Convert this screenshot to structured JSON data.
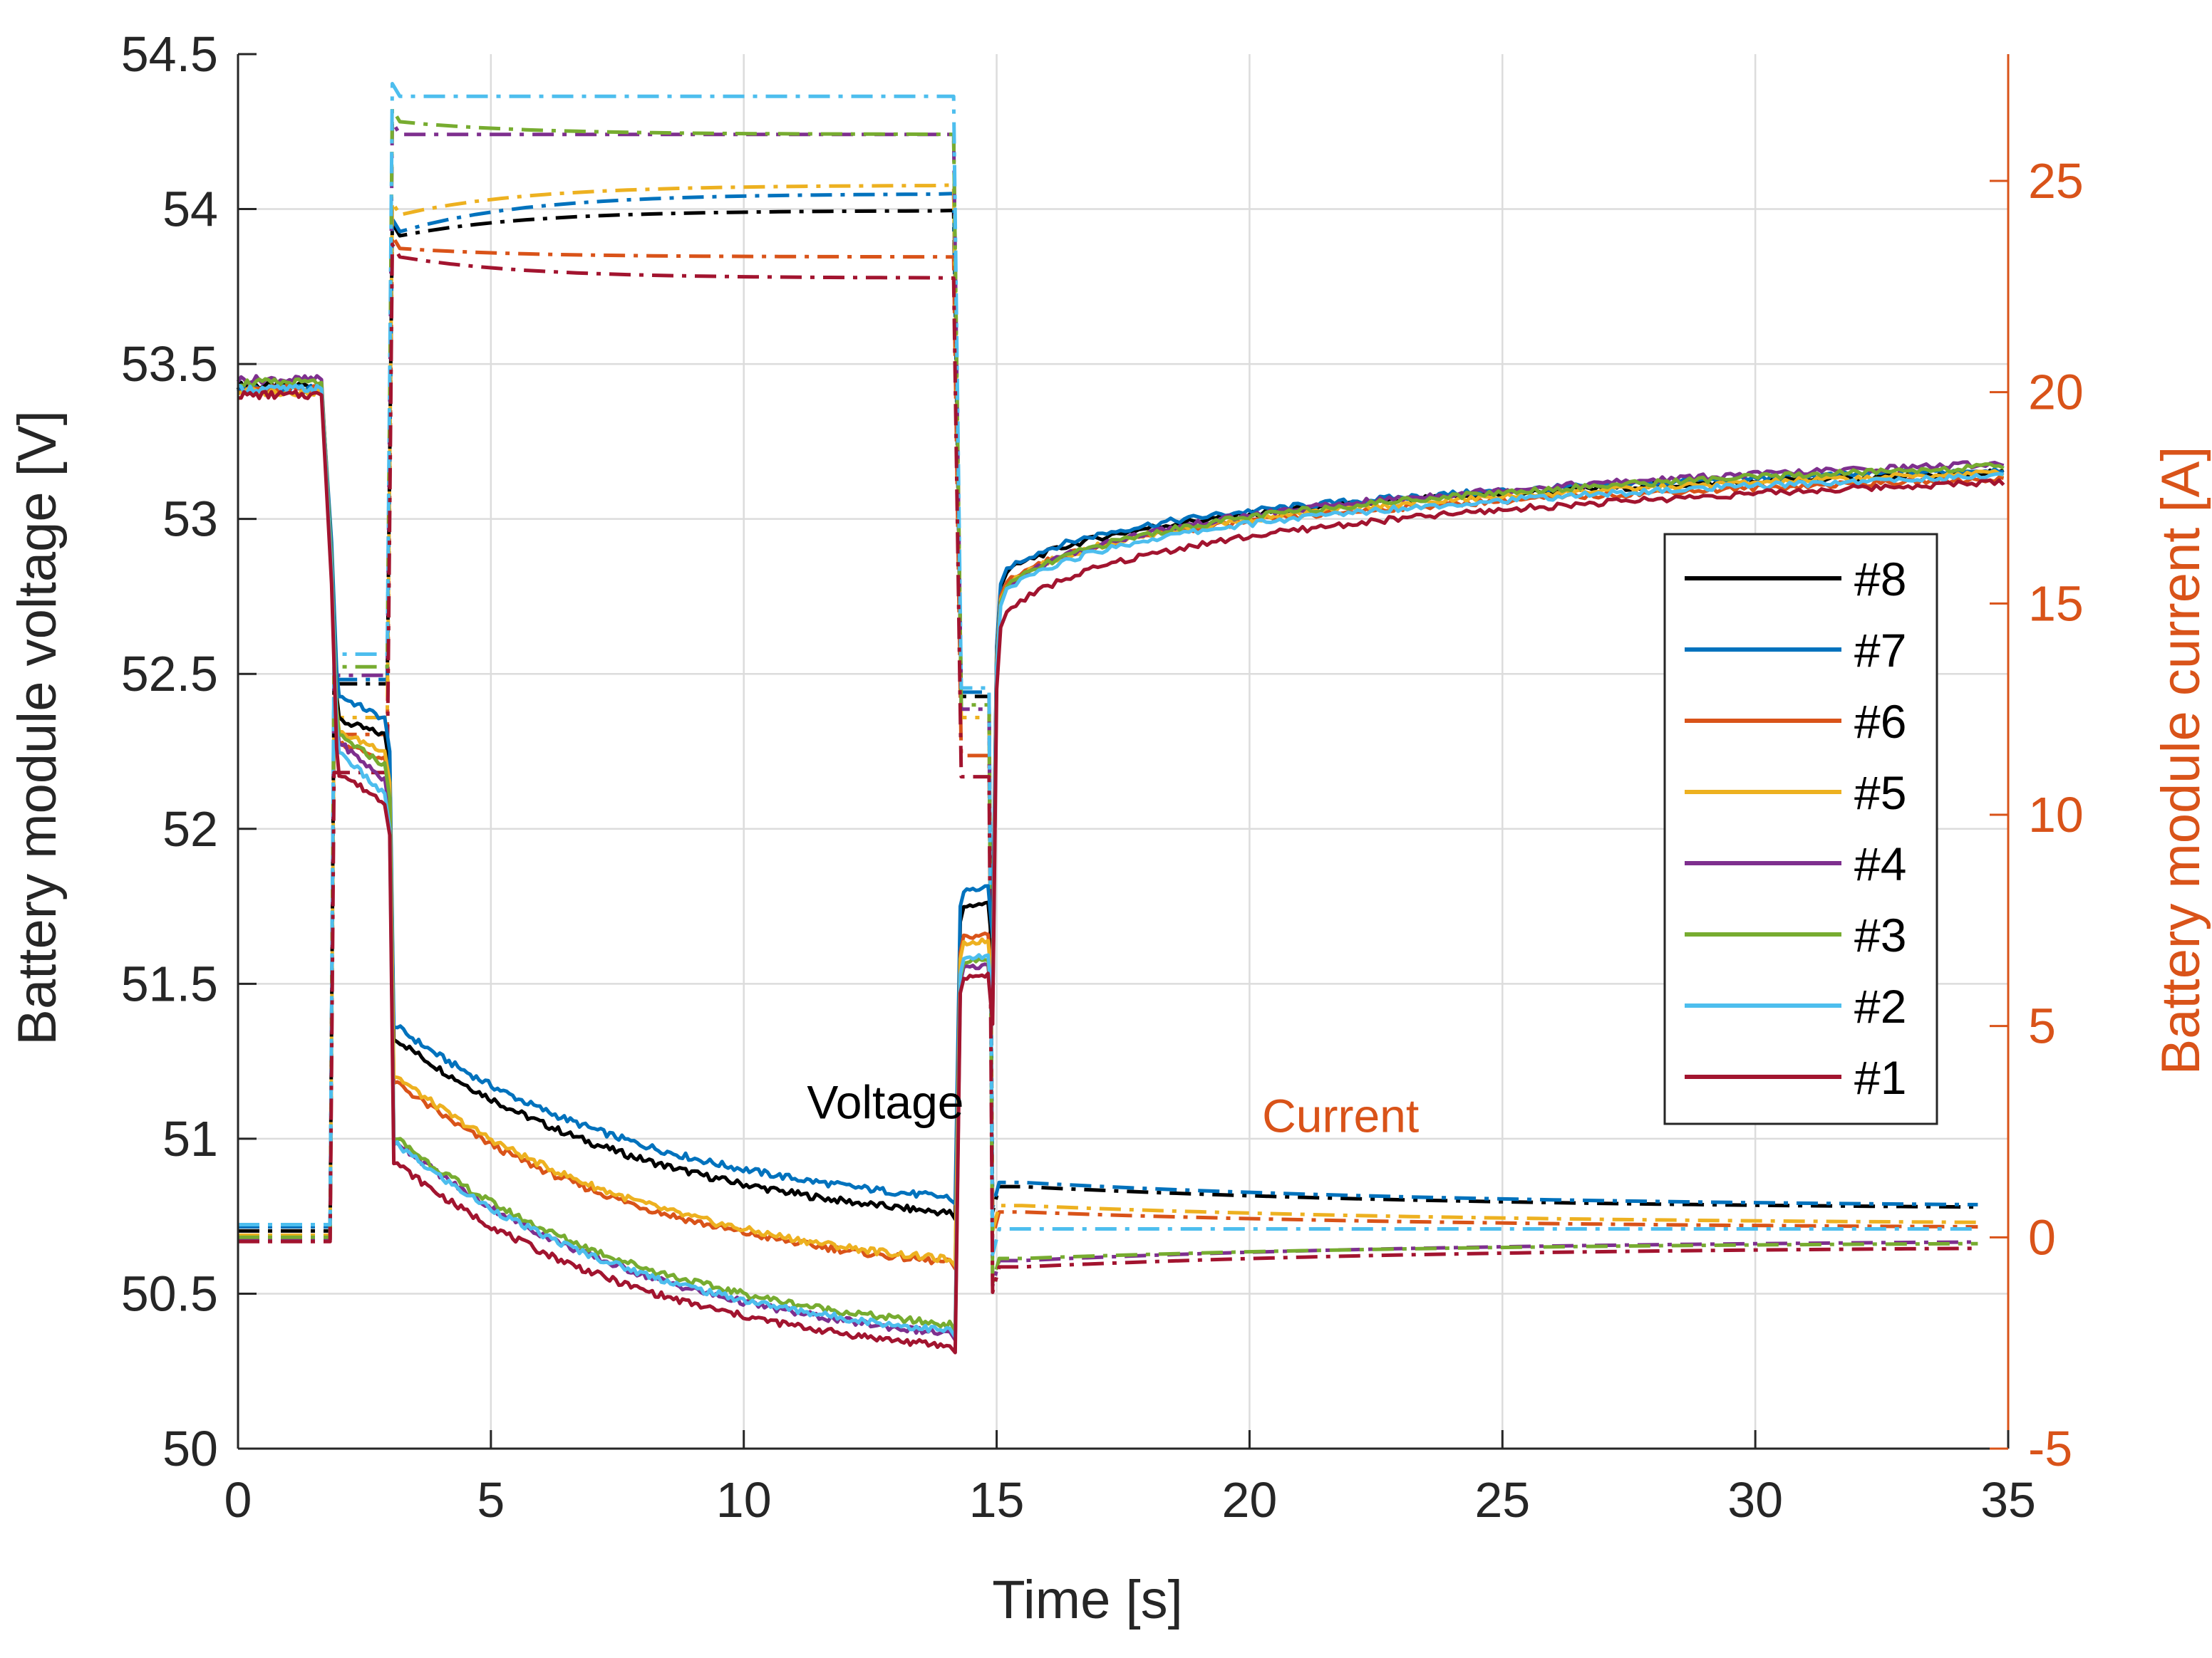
{
  "chart_data": {
    "type": "line",
    "title": "",
    "xlabel": "Time [s]",
    "ylabel_left": "Battery module voltage [V]",
    "ylabel_right": "Battery module current [A]",
    "xlim": [
      0,
      35
    ],
    "ylim_left": [
      50,
      54.5
    ],
    "ylim_right": [
      -5,
      28
    ],
    "x_ticks": [
      0,
      5,
      10,
      15,
      20,
      25,
      30,
      35
    ],
    "x_tick_labels": [
      "0",
      "5",
      "10",
      "15",
      "20",
      "25",
      "30",
      "35"
    ],
    "y_left_ticks": [
      50,
      50.5,
      51,
      51.5,
      52,
      52.5,
      53,
      53.5,
      54,
      54.5
    ],
    "y_left_tick_labels": [
      "50",
      "50.5",
      "51",
      "51.5",
      "52",
      "52.5",
      "53",
      "53.5",
      "54",
      "54.5"
    ],
    "y_right_ticks": [
      -5,
      0,
      5,
      10,
      15,
      20,
      25
    ],
    "y_right_tick_labels": [
      "-5",
      "0",
      "5",
      "10",
      "15",
      "20",
      "25"
    ],
    "grid": true,
    "legend_position": "right",
    "annotations": [
      {
        "text": "Voltage",
        "x": 12.8,
        "y": 51.12,
        "axis": "left",
        "color": "#000000"
      },
      {
        "text": "Current",
        "x": 21.8,
        "y": 2.9,
        "axis": "right",
        "color": "#D95319"
      }
    ],
    "colors": {
      "axis": "#262626",
      "grid": "#dcdcdc",
      "current_axis": "#D95319"
    },
    "series": [
      {
        "name": "#8",
        "color": "#000000",
        "v0": 53.43,
        "vd": 52.35,
        "vd2": 52.3,
        "vc0": 51.32,
        "vc1": 50.76,
        "vp": 51.75,
        "vr0": 52.83,
        "vr1": 53.15,
        "i0": 0.15,
        "id": 13.1,
        "ic0": 23.7,
        "ic1": 24.3,
        "ip": 12.8,
        "ir0": 1.2,
        "ir1": 0.65
      },
      {
        "name": "#7",
        "color": "#0072BD",
        "v0": 53.42,
        "vd": 52.43,
        "vd2": 52.35,
        "vc0": 51.36,
        "vc1": 50.81,
        "vp": 51.8,
        "vr0": 52.84,
        "vr1": 53.16,
        "i0": 0.25,
        "id": 13.2,
        "ic0": 23.8,
        "ic1": 24.7,
        "ip": 12.9,
        "ir0": 1.3,
        "ir1": 0.7
      },
      {
        "name": "#6",
        "color": "#D95319",
        "v0": 53.42,
        "vd": 52.28,
        "vd2": 52.22,
        "vc0": 51.18,
        "vc1": 50.6,
        "vp": 51.65,
        "vr0": 52.8,
        "vr1": 53.13,
        "i0": -0.05,
        "id": 11.9,
        "ic0": 23.4,
        "ic1": 23.2,
        "ip": 11.4,
        "ir0": 0.6,
        "ir1": 0.2
      },
      {
        "name": "#5",
        "color": "#EDB120",
        "v0": 53.41,
        "vd": 52.31,
        "vd2": 52.25,
        "vc0": 51.2,
        "vc1": 50.61,
        "vp": 51.63,
        "vr0": 52.79,
        "vr1": 53.15,
        "i0": 0.05,
        "id": 12.3,
        "ic0": 24.2,
        "ic1": 24.9,
        "ip": 12.3,
        "ir0": 0.75,
        "ir1": 0.3
      },
      {
        "name": "#4",
        "color": "#7E2F8E",
        "v0": 53.45,
        "vd": 52.28,
        "vd2": 52.15,
        "vc0": 50.99,
        "vc1": 50.37,
        "vp": 51.55,
        "vr0": 52.78,
        "vr1": 53.18,
        "i0": -0.05,
        "id": 13.3,
        "ic0": 26.1,
        "ic1": 26.1,
        "ip": 12.5,
        "ir0": -0.55,
        "ir1": -0.05
      },
      {
        "name": "#3",
        "color": "#77AC30",
        "v0": 53.44,
        "vd": 52.3,
        "vd2": 52.2,
        "vc0": 51.0,
        "vc1": 50.4,
        "vp": 51.57,
        "vr0": 52.78,
        "vr1": 53.17,
        "i0": 0.0,
        "id": 13.5,
        "ic0": 26.4,
        "ic1": 26.1,
        "ip": 12.6,
        "ir0": -0.5,
        "ir1": -0.1
      },
      {
        "name": "#2",
        "color": "#4DBEEE",
        "v0": 53.42,
        "vd": 52.25,
        "vd2": 52.1,
        "vc0": 50.98,
        "vc1": 50.38,
        "vp": 51.58,
        "vr0": 52.77,
        "vr1": 53.14,
        "i0": 0.3,
        "id": 13.8,
        "ic0": 27.0,
        "ic1": 27.0,
        "ip": 13.0,
        "ir0": 0.2,
        "ir1": 0.2
      },
      {
        "name": "#1",
        "color": "#A2142F",
        "v0": 53.4,
        "vd": 52.18,
        "vd2": 52.08,
        "vc0": 50.92,
        "vc1": 50.33,
        "vp": 51.52,
        "vr0": 52.7,
        "vr1": 53.12,
        "i0": -0.1,
        "id": 11.0,
        "ic0": 23.2,
        "ic1": 22.7,
        "ip": 10.9,
        "ir0": -0.7,
        "ir1": -0.2
      }
    ]
  }
}
